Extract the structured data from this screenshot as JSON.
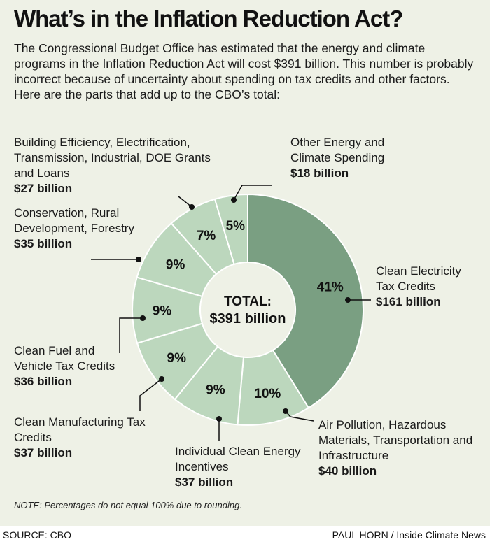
{
  "title": "What’s in the Inflation Reduction Act?",
  "subtitle": "The Congressional Budget Office has estimated that the energy and climate programs in the Inflation Reduction Act will cost $391 billion. This number is probably incorrect because of uncertainty about spending on tax credits and other factors. Here are the parts that add up to the CBO’s total:",
  "center": {
    "line1": "TOTAL:",
    "line2": "$391 billion"
  },
  "note": "NOTE: Percentages do not equal 100% due to rounding.",
  "source": "SOURCE: CBO",
  "credit": "PAUL HORN / Inside Climate News",
  "colors": {
    "highlight": "#7a9f82",
    "slice": "#bcd7bd",
    "border": "#ffffff",
    "background": "#eef1e6"
  },
  "chart_data": {
    "type": "pie",
    "style": "donut",
    "total_label": "TOTAL: $391 billion",
    "slices": [
      {
        "name": "Clean Electricity Tax Credits",
        "value": 161,
        "value_label": "$161 billion",
        "percent_label": "41%",
        "highlight": true
      },
      {
        "name": "Air Pollution, Hazardous Materials, Transportation and Infrastructure",
        "value": 40,
        "value_label": "$40 billion",
        "percent_label": "10%"
      },
      {
        "name": "Individual Clean Energy Incentives",
        "value": 37,
        "value_label": "$37 billion",
        "percent_label": "9%"
      },
      {
        "name": "Clean Manufacturing Tax Credits",
        "value": 37,
        "value_label": "$37 billion",
        "percent_label": "9%"
      },
      {
        "name": "Clean Fuel and Vehicle Tax Credits",
        "value": 36,
        "value_label": "$36 billion",
        "percent_label": "9%"
      },
      {
        "name": "Conservation, Rural Development, Forestry",
        "value": 35,
        "value_label": "$35 billion",
        "percent_label": "9%"
      },
      {
        "name": "Building Efficiency, Electrification, Transmission, Industrial, DOE Grants and Loans",
        "value": 27,
        "value_label": "$27 billion",
        "percent_label": "7%"
      },
      {
        "name": "Other Energy and Climate Spending",
        "value": 18,
        "value_label": "$18 billion",
        "percent_label": "5%"
      }
    ]
  }
}
